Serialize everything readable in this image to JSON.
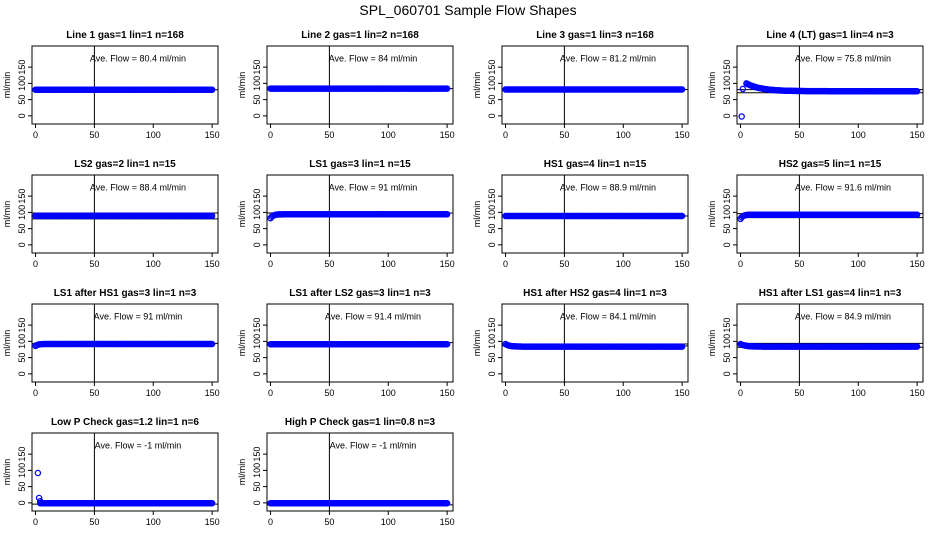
{
  "figure_title": "SPL_060701  Sample Flow Shapes",
  "chart_data": [
    {
      "type": "scatter",
      "title": "Line 1 gas=1 lin=1 n=168",
      "ylabel": "ml/min",
      "annotation": "Ave. Flow =  80.4  ml/min",
      "xlim": [
        -3,
        155
      ],
      "ylim": [
        -25,
        215
      ],
      "xticks": [
        0,
        50,
        100,
        150
      ],
      "yticks": [
        0,
        50,
        100,
        150
      ],
      "vline": 50,
      "hlines": [
        80.4
      ],
      "series": [
        {
          "color": "#0000ff",
          "shape": "flat",
          "start": 0,
          "end": 150,
          "level": 80.4
        }
      ]
    },
    {
      "type": "scatter",
      "title": "Line 2 gas=1 lin=2 n=168",
      "ylabel": "ml/min",
      "annotation": "Ave. Flow =  84  ml/min",
      "xlim": [
        -3,
        155
      ],
      "ylim": [
        -25,
        215
      ],
      "xticks": [
        0,
        50,
        100,
        150
      ],
      "yticks": [
        0,
        50,
        100,
        150
      ],
      "vline": 50,
      "hlines": [
        84
      ],
      "series": [
        {
          "color": "#0000ff",
          "shape": "flat",
          "start": 0,
          "end": 150,
          "level": 84
        }
      ]
    },
    {
      "type": "scatter",
      "title": "Line 3 gas=1 lin=3 n=168",
      "ylabel": "ml/min",
      "annotation": "Ave. Flow =  81.2  ml/min",
      "xlim": [
        -3,
        155
      ],
      "ylim": [
        -25,
        215
      ],
      "xticks": [
        0,
        50,
        100,
        150
      ],
      "yticks": [
        0,
        50,
        100,
        150
      ],
      "vline": 50,
      "hlines": [
        81.2
      ],
      "series": [
        {
          "color": "#0000ff",
          "shape": "flat",
          "start": 0,
          "end": 150,
          "level": 81.2
        }
      ]
    },
    {
      "type": "scatter",
      "title": "Line 4 (LT) gas=1 lin=4 n=3",
      "ylabel": "ml/min",
      "annotation": "Ave. Flow =  75.8  ml/min",
      "xlim": [
        -3,
        155
      ],
      "ylim": [
        -25,
        215
      ],
      "xticks": [
        0,
        50,
        100,
        150
      ],
      "yticks": [
        0,
        50,
        100,
        150
      ],
      "vline": 50,
      "hlines": [
        80.6,
        71
      ],
      "series": [
        {
          "color": "#0000ff",
          "shape": "decay",
          "start": 5,
          "end": 150,
          "level": 76,
          "peak": 100,
          "tau": 12,
          "extra": [
            [
              1,
              -2
            ],
            [
              2,
              83
            ]
          ]
        }
      ]
    },
    {
      "type": "scatter",
      "title": "LS2 gas=2 lin=1 n=15",
      "ylabel": "ml/min",
      "annotation": "Ave. Flow =  88.4  ml/min",
      "xlim": [
        -3,
        155
      ],
      "ylim": [
        -25,
        215
      ],
      "xticks": [
        0,
        50,
        100,
        150
      ],
      "yticks": [
        0,
        50,
        100,
        150
      ],
      "vline": 50,
      "hlines": [
        98,
        80
      ],
      "series": [
        {
          "color": "#0000ff",
          "shape": "flat",
          "start": 0,
          "end": 150,
          "level": 89
        }
      ]
    },
    {
      "type": "scatter",
      "title": "LS1 gas=3 lin=1 n=15",
      "ylabel": "ml/min",
      "annotation": "Ave. Flow =  91  ml/min",
      "xlim": [
        -3,
        155
      ],
      "ylim": [
        -25,
        215
      ],
      "xticks": [
        0,
        50,
        100,
        150
      ],
      "yticks": [
        0,
        50,
        100,
        150
      ],
      "vline": 50,
      "hlines": [
        98
      ],
      "series": [
        {
          "color": "#0000ff",
          "shape": "rise",
          "start": 0,
          "end": 150,
          "level": 94,
          "low": 82,
          "tau": 2
        }
      ]
    },
    {
      "type": "scatter",
      "title": "HS1 gas=4 lin=1 n=15",
      "ylabel": "ml/min",
      "annotation": "Ave. Flow =  88.9  ml/min",
      "xlim": [
        -3,
        155
      ],
      "ylim": [
        -25,
        215
      ],
      "xticks": [
        0,
        50,
        100,
        150
      ],
      "yticks": [
        0,
        50,
        100,
        150
      ],
      "vline": 50,
      "hlines": [
        88.9
      ],
      "series": [
        {
          "color": "#0000ff",
          "shape": "flat",
          "start": 0,
          "end": 150,
          "level": 88.9
        }
      ]
    },
    {
      "type": "scatter",
      "title": "HS2 gas=5 lin=1 n=15",
      "ylabel": "ml/min",
      "annotation": "Ave. Flow =  91.6  ml/min",
      "xlim": [
        -3,
        155
      ],
      "ylim": [
        -25,
        215
      ],
      "xticks": [
        0,
        50,
        100,
        150
      ],
      "yticks": [
        0,
        50,
        100,
        150
      ],
      "vline": 50,
      "hlines": [
        96,
        84
      ],
      "series": [
        {
          "color": "#0000ff",
          "shape": "rise",
          "start": 0,
          "end": 150,
          "level": 93,
          "low": 80,
          "tau": 2
        }
      ]
    },
    {
      "type": "scatter",
      "title": "LS1 after HS1 gas=3 lin=1 n=3",
      "ylabel": "ml/min",
      "annotation": "Ave. Flow =  91  ml/min",
      "xlim": [
        -3,
        155
      ],
      "ylim": [
        -25,
        215
      ],
      "xticks": [
        0,
        50,
        100,
        150
      ],
      "yticks": [
        0,
        50,
        100,
        150
      ],
      "vline": 50,
      "hlines": [
        94
      ],
      "series": [
        {
          "color": "#0000ff",
          "shape": "rise",
          "start": 0,
          "end": 150,
          "level": 92,
          "low": 86,
          "tau": 2
        }
      ]
    },
    {
      "type": "scatter",
      "title": "LS1 after LS2 gas=3 lin=1 n=3",
      "ylabel": "ml/min",
      "annotation": "Ave. Flow =  91.4  ml/min",
      "xlim": [
        -3,
        155
      ],
      "ylim": [
        -25,
        215
      ],
      "xticks": [
        0,
        50,
        100,
        150
      ],
      "yticks": [
        0,
        50,
        100,
        150
      ],
      "vline": 50,
      "hlines": [
        96
      ],
      "series": [
        {
          "color": "#0000ff",
          "shape": "flat",
          "start": 0,
          "end": 150,
          "level": 91.4
        }
      ]
    },
    {
      "type": "scatter",
      "title": "HS1 after HS2 gas=4 lin=1 n=3",
      "ylabel": "ml/min",
      "annotation": "Ave. Flow =  84.1  ml/min",
      "xlim": [
        -3,
        155
      ],
      "ylim": [
        -25,
        215
      ],
      "xticks": [
        0,
        50,
        100,
        150
      ],
      "yticks": [
        0,
        50,
        100,
        150
      ],
      "vline": 50,
      "hlines": [
        92,
        86
      ],
      "series": [
        {
          "color": "#0000ff",
          "shape": "decay",
          "start": 0,
          "end": 150,
          "level": 84,
          "peak": 92,
          "tau": 3
        }
      ]
    },
    {
      "type": "scatter",
      "title": "HS1 after LS1 gas=4 lin=1 n=3",
      "ylabel": "ml/min",
      "annotation": "Ave. Flow =  84.9  ml/min",
      "xlim": [
        -3,
        155
      ],
      "ylim": [
        -25,
        215
      ],
      "xticks": [
        0,
        50,
        100,
        150
      ],
      "yticks": [
        0,
        50,
        100,
        150
      ],
      "vline": 50,
      "hlines": [
        94,
        82
      ],
      "series": [
        {
          "color": "#0000ff",
          "shape": "decay",
          "start": 0,
          "end": 150,
          "level": 84,
          "peak": 92,
          "tau": 4
        }
      ]
    },
    {
      "type": "scatter",
      "title": "Low P Check gas=1.2 lin=1 n=6",
      "ylabel": "ml/min",
      "annotation": "Ave. Flow =  -1  ml/min",
      "xlim": [
        -3,
        155
      ],
      "ylim": [
        -25,
        215
      ],
      "xticks": [
        0,
        50,
        100,
        150
      ],
      "yticks": [
        0,
        50,
        100,
        150
      ],
      "vline": 50,
      "hlines": [
        -4
      ],
      "series": [
        {
          "color": "#0000ff",
          "shape": "flat",
          "start": 4,
          "end": 150,
          "level": -1,
          "extra": [
            [
              2,
              92
            ],
            [
              3,
              15
            ],
            [
              4,
              5
            ]
          ]
        }
      ]
    },
    {
      "type": "scatter",
      "title": "High P Check gas=1 lin=0.8 n=3",
      "ylabel": "ml/min",
      "annotation": "Ave. Flow =  -1  ml/min",
      "xlim": [
        -3,
        155
      ],
      "ylim": [
        -25,
        215
      ],
      "xticks": [
        0,
        50,
        100,
        150
      ],
      "yticks": [
        0,
        50,
        100,
        150
      ],
      "vline": 50,
      "hlines": [
        -6
      ],
      "series": [
        {
          "color": "#0000ff",
          "shape": "flat",
          "start": 0,
          "end": 150,
          "level": -1
        }
      ]
    }
  ]
}
